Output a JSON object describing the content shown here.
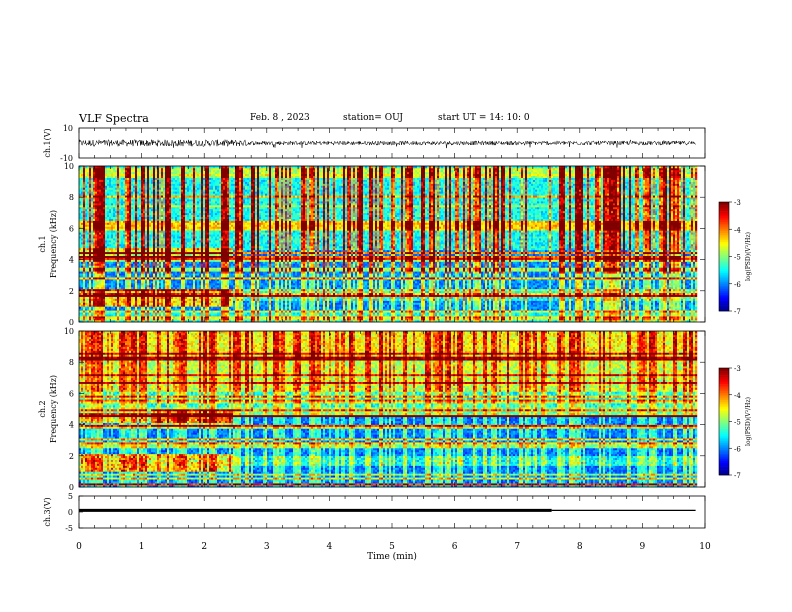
{
  "header": {
    "title": "VLF Spectra",
    "date": "Feb. 8 , 2023",
    "station": "station= OUJ",
    "start": "start UT =   14: 10: 0"
  },
  "chart_data": [
    {
      "type": "line",
      "panel": "ch1-waveform",
      "ylabel": "ch.1(V)",
      "ylim": [
        -10,
        10
      ],
      "yticks": [
        10,
        -10
      ],
      "xlim": [
        0,
        10
      ],
      "series": [
        {
          "values_desc": "noise",
          "amplitude": 1.4
        }
      ]
    },
    {
      "type": "heatmap",
      "panel": "ch1-spectrogram",
      "ylabel": [
        "ch.1",
        "Frequency (kHz)"
      ],
      "ylim": [
        0,
        10
      ],
      "yticks": [
        0,
        2,
        4,
        6,
        8,
        10
      ],
      "xlim": [
        0,
        9.85
      ],
      "colorbar": {
        "label": "log(PSD)(V²/Hz)",
        "range": [
          -7,
          -3
        ],
        "ticks": [
          -3,
          -4,
          -5,
          -6,
          -7
        ]
      }
    },
    {
      "type": "heatmap",
      "panel": "ch2-spectrogram",
      "ylabel": [
        "ch.2",
        "Frequency (kHz)"
      ],
      "ylim": [
        0,
        10
      ],
      "yticks": [
        0,
        2,
        4,
        6,
        8,
        10
      ],
      "xlim": [
        0,
        9.85
      ],
      "colorbar": {
        "label": "log(PSD)(V²/Hz)",
        "range": [
          -7,
          -3
        ],
        "ticks": [
          -3,
          -4,
          -5,
          -6,
          -7
        ]
      }
    },
    {
      "type": "line",
      "panel": "ch3-waveform",
      "ylabel": "ch.3(V)",
      "ylim": [
        -5,
        5
      ],
      "yticks": [
        5,
        0,
        -5
      ],
      "xlim": [
        0,
        10
      ],
      "xlabel": "Time (min)",
      "xticks": [
        0,
        1,
        2,
        3,
        4,
        5,
        6,
        7,
        8,
        9,
        10
      ],
      "series": [
        {
          "segments": [
            {
              "x": [
                0,
                7.55
              ],
              "y": 0.5
            },
            {
              "x": [
                7.55,
                9.85
              ],
              "y": 0.5
            }
          ]
        }
      ]
    }
  ]
}
